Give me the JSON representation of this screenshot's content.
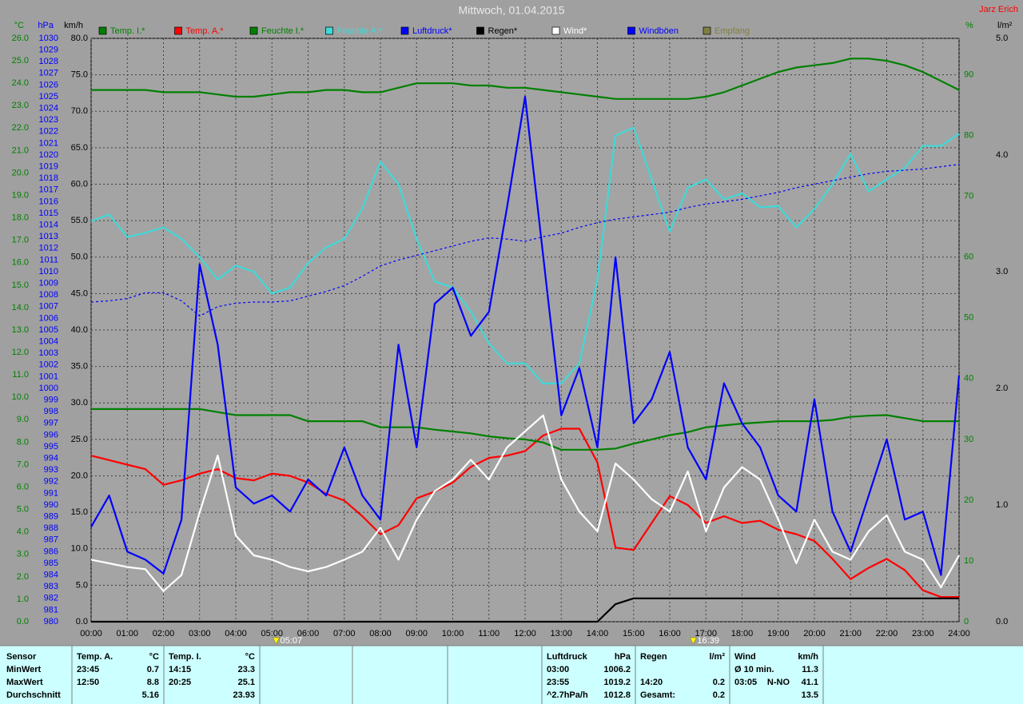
{
  "chart_data": {
    "type": "line",
    "title": "Mittwoch, 01.04.2015",
    "author": "Jarz Erich",
    "xlim": [
      0,
      24
    ],
    "xticks": [
      {
        "value": 0,
        "label": "00:00"
      },
      {
        "value": 1,
        "label": "01:00"
      },
      {
        "value": 2,
        "label": "02:00"
      },
      {
        "value": 3,
        "label": "03:00"
      },
      {
        "value": 4,
        "label": "04:00"
      },
      {
        "value": 5,
        "label": "05:00"
      },
      {
        "value": 6,
        "label": "06:00"
      },
      {
        "value": 7,
        "label": "07:00"
      },
      {
        "value": 8,
        "label": "08:00"
      },
      {
        "value": 9,
        "label": "09:00"
      },
      {
        "value": 10,
        "label": "10:00"
      },
      {
        "value": 11,
        "label": "11:00"
      },
      {
        "value": 12,
        "label": "12:00"
      },
      {
        "value": 13,
        "label": "13:00"
      },
      {
        "value": 14,
        "label": "14:00"
      },
      {
        "value": 15,
        "label": "15:00"
      },
      {
        "value": 16,
        "label": "16:00"
      },
      {
        "value": 17,
        "label": "17:00"
      },
      {
        "value": 18,
        "label": "18:00"
      },
      {
        "value": 19,
        "label": "19:00"
      },
      {
        "value": 20,
        "label": "20:00"
      },
      {
        "value": 21,
        "label": "21:00"
      },
      {
        "value": 22,
        "label": "22:00"
      },
      {
        "value": 23,
        "label": "23:00"
      },
      {
        "value": 24,
        "label": "24:00"
      }
    ],
    "grid": true,
    "axes": [
      {
        "id": "temp",
        "label": "°C",
        "side": "left",
        "color": "#008000",
        "lim": [
          0,
          26
        ],
        "ticks": [
          {
            "value": 0,
            "label": "0.0"
          },
          {
            "value": 1,
            "label": "1.0"
          },
          {
            "value": 2,
            "label": "2.0"
          },
          {
            "value": 3,
            "label": "3.0"
          },
          {
            "value": 4,
            "label": "4.0"
          },
          {
            "value": 5,
            "label": "5.0"
          },
          {
            "value": 6,
            "label": "6.0"
          },
          {
            "value": 7,
            "label": "7.0"
          },
          {
            "value": 8,
            "label": "8.0"
          },
          {
            "value": 9,
            "label": "9.0"
          },
          {
            "value": 10,
            "label": "10.0"
          },
          {
            "value": 11,
            "label": "11.0"
          },
          {
            "value": 12,
            "label": "12.0"
          },
          {
            "value": 13,
            "label": "13.0"
          },
          {
            "value": 14,
            "label": "14.0"
          },
          {
            "value": 15,
            "label": "15.0"
          },
          {
            "value": 16,
            "label": "16.0"
          },
          {
            "value": 17,
            "label": "17.0"
          },
          {
            "value": 18,
            "label": "18.0"
          },
          {
            "value": 19,
            "label": "19.0"
          },
          {
            "value": 20,
            "label": "20.0"
          },
          {
            "value": 21,
            "label": "21.0"
          },
          {
            "value": 22,
            "label": "22.0"
          },
          {
            "value": 23,
            "label": "23.0"
          },
          {
            "value": 24,
            "label": "24.0"
          },
          {
            "value": 25,
            "label": "25.0"
          },
          {
            "value": 26,
            "label": "26.0"
          }
        ]
      },
      {
        "id": "hpa",
        "label": "hPa",
        "side": "left",
        "color": "#0000ff",
        "lim": [
          980,
          1030
        ],
        "ticks": [
          980,
          981,
          982,
          983,
          984,
          985,
          986,
          987,
          988,
          989,
          990,
          991,
          992,
          993,
          994,
          995,
          996,
          997,
          998,
          999,
          1000,
          1001,
          1002,
          1003,
          1004,
          1005,
          1006,
          1007,
          1008,
          1009,
          1010,
          1011,
          1012,
          1013,
          1014,
          1015,
          1016,
          1017,
          1018,
          1019,
          1020,
          1021,
          1022,
          1023,
          1024,
          1025,
          1026,
          1027,
          1028,
          1029,
          1030
        ]
      },
      {
        "id": "kmh",
        "label": "km/h",
        "side": "left",
        "color": "#000000",
        "lim": [
          0,
          80
        ],
        "grid": true,
        "ticks": [
          {
            "value": 0,
            "label": "0.0"
          },
          {
            "value": 5,
            "label": "5.0"
          },
          {
            "value": 10,
            "label": "10.0"
          },
          {
            "value": 15,
            "label": "15.0"
          },
          {
            "value": 20,
            "label": "20.0"
          },
          {
            "value": 25,
            "label": "25.0"
          },
          {
            "value": 30,
            "label": "30.0"
          },
          {
            "value": 35,
            "label": "35.0"
          },
          {
            "value": 40,
            "label": "40.0"
          },
          {
            "value": 45,
            "label": "45.0"
          },
          {
            "value": 50,
            "label": "50.0"
          },
          {
            "value": 55,
            "label": "55.0"
          },
          {
            "value": 60,
            "label": "60.0"
          },
          {
            "value": 65,
            "label": "65.0"
          },
          {
            "value": 70,
            "label": "70.0"
          },
          {
            "value": 75,
            "label": "75.0"
          },
          {
            "value": 80,
            "label": "80.0"
          }
        ]
      },
      {
        "id": "pct",
        "label": "%",
        "side": "right",
        "color": "#008000",
        "lim": [
          0,
          96
        ],
        "ticks": [
          0,
          10,
          20,
          30,
          40,
          50,
          60,
          70,
          80,
          90
        ]
      },
      {
        "id": "rain",
        "label": "l/m²",
        "side": "right",
        "color": "#000000",
        "lim": [
          0,
          5
        ],
        "ticks": [
          {
            "value": 0,
            "label": "0.0"
          },
          {
            "value": 1,
            "label": "1.0"
          },
          {
            "value": 2,
            "label": "2.0"
          },
          {
            "value": 3,
            "label": "3.0"
          },
          {
            "value": 4,
            "label": "4.0"
          },
          {
            "value": 5,
            "label": "5.0"
          }
        ]
      }
    ],
    "x": [
      0,
      0.5,
      1,
      1.5,
      2,
      2.5,
      3,
      3.5,
      4,
      4.5,
      5,
      5.5,
      6,
      6.5,
      7,
      7.5,
      8,
      8.5,
      9,
      9.5,
      10,
      10.5,
      11,
      11.5,
      12,
      12.5,
      13,
      13.5,
      14,
      14.5,
      15,
      15.5,
      16,
      16.5,
      17,
      17.5,
      18,
      18.5,
      19,
      19.5,
      20,
      20.5,
      21,
      21.5,
      22,
      22.5,
      23,
      23.5,
      24
    ],
    "series": [
      {
        "name": "Temp. I.*",
        "color": "#008000",
        "axis": "temp",
        "values": [
          23.7,
          23.7,
          23.7,
          23.7,
          23.6,
          23.6,
          23.6,
          23.5,
          23.4,
          23.4,
          23.5,
          23.6,
          23.6,
          23.7,
          23.7,
          23.6,
          23.6,
          23.8,
          24.0,
          24.0,
          24.0,
          23.9,
          23.9,
          23.8,
          23.8,
          23.7,
          23.6,
          23.5,
          23.4,
          23.3,
          23.3,
          23.3,
          23.3,
          23.3,
          23.4,
          23.6,
          23.9,
          24.2,
          24.5,
          24.7,
          24.8,
          24.9,
          25.1,
          25.1,
          25.0,
          24.8,
          24.5,
          24.1,
          23.7
        ]
      },
      {
        "name": "Temp. A.*",
        "color": "#ff0000",
        "axis": "temp",
        "values": [
          7.4,
          7.2,
          7.0,
          6.8,
          6.1,
          6.3,
          6.6,
          6.8,
          6.4,
          6.3,
          6.6,
          6.5,
          6.2,
          5.7,
          5.4,
          4.7,
          3.9,
          4.3,
          5.5,
          5.8,
          6.2,
          6.9,
          7.3,
          7.4,
          7.6,
          8.3,
          8.6,
          8.6,
          7.1,
          3.3,
          3.2,
          4.4,
          5.6,
          5.2,
          4.4,
          4.7,
          4.4,
          4.5,
          4.1,
          3.9,
          3.6,
          2.8,
          1.9,
          2.4,
          2.8,
          2.3,
          1.4,
          1.1,
          1.1
        ]
      },
      {
        "name": "Feuchte I.*",
        "color": "#008000",
        "axis": "pct",
        "values": [
          35,
          35,
          35,
          35,
          35,
          35,
          35,
          34.5,
          34,
          34,
          34,
          34,
          33,
          33,
          33,
          33,
          32,
          32,
          32,
          31.6,
          31.3,
          31,
          30.5,
          30.2,
          30,
          29.5,
          28.3,
          28.3,
          28.3,
          28.5,
          29.3,
          30,
          30.7,
          31.2,
          32,
          32.3,
          32.6,
          32.8,
          33,
          33,
          33,
          33.2,
          33.7,
          33.9,
          34,
          33.5,
          33,
          33,
          33
        ]
      },
      {
        "name": "Feuchte A.*",
        "color": "#40d8d8",
        "axis": "pct",
        "values": [
          65.9,
          67,
          63.3,
          64,
          64.9,
          63,
          60,
          56.3,
          58.6,
          57.6,
          54,
          55,
          59,
          61.6,
          63,
          68,
          75.7,
          72,
          63,
          56,
          55,
          51,
          45.8,
          42.5,
          42.5,
          39.2,
          39.2,
          42.5,
          56.3,
          80,
          81.3,
          72.8,
          64.2,
          71.4,
          72.8,
          69.5,
          70.5,
          68.2,
          68.4,
          64.9,
          67.9,
          72,
          77,
          70.8,
          72.8,
          74.7,
          78.3,
          78.3,
          80.3
        ]
      },
      {
        "name": "Luftdruck*",
        "color": "#0000ff",
        "axis": "hpa",
        "dash": true,
        "values": [
          1007.4,
          1007.5,
          1007.7,
          1008.2,
          1008.2,
          1007.5,
          1006.2,
          1007.0,
          1007.3,
          1007.4,
          1007.4,
          1007.5,
          1007.9,
          1008.3,
          1008.8,
          1009.6,
          1010.5,
          1011.0,
          1011.4,
          1011.8,
          1012.2,
          1012.6,
          1012.9,
          1012.8,
          1012.6,
          1013.0,
          1013.3,
          1013.8,
          1014.2,
          1014.5,
          1014.7,
          1014.9,
          1015.1,
          1015.5,
          1015.8,
          1016.0,
          1016.2,
          1016.5,
          1016.8,
          1017.2,
          1017.5,
          1017.8,
          1018.1,
          1018.4,
          1018.6,
          1018.7,
          1018.8,
          1019.0,
          1019.2
        ]
      },
      {
        "name": "Regen*",
        "color": "#000000",
        "axis": "rain",
        "values": [
          0,
          0,
          0,
          0,
          0,
          0,
          0,
          0,
          0,
          0,
          0,
          0,
          0,
          0,
          0,
          0,
          0,
          0,
          0,
          0,
          0,
          0,
          0,
          0,
          0,
          0,
          0,
          0,
          0,
          0.15,
          0.2,
          0.2,
          0.2,
          0.2,
          0.2,
          0.2,
          0.2,
          0.2,
          0.2,
          0.2,
          0.2,
          0.2,
          0.2,
          0.2,
          0.2,
          0.2,
          0.2,
          0.2,
          0.2
        ]
      },
      {
        "name": "Wind*",
        "color": "#ffffff",
        "axis": "kmh",
        "values": [
          8.5,
          8,
          7.5,
          7.2,
          4.2,
          6.4,
          15,
          22.8,
          11.8,
          9.1,
          8.5,
          7.5,
          6.9,
          7.5,
          8.5,
          9.6,
          12.9,
          8.5,
          14,
          17.9,
          19.5,
          22.2,
          19.5,
          23.9,
          26.1,
          28.3,
          19.5,
          15.1,
          12.4,
          21.7,
          19.5,
          16.8,
          15.1,
          20.6,
          12.4,
          18.4,
          21.2,
          19.5,
          14,
          8,
          14,
          9.6,
          8.5,
          12.4,
          14.6,
          9.6,
          8.5,
          4.7,
          9.1
        ]
      },
      {
        "name": "Windböen",
        "color": "#0000ff",
        "axis": "kmh",
        "values": [
          13,
          17.3,
          9.6,
          8.5,
          6.6,
          14,
          49,
          38,
          18.4,
          16.2,
          17.3,
          15.1,
          19.5,
          17.3,
          23.9,
          17.3,
          14,
          38,
          23.9,
          43.6,
          45.8,
          39.2,
          42.5,
          56.8,
          72,
          50.2,
          28.3,
          34.8,
          23.9,
          50,
          27.2,
          30.5,
          37,
          23.9,
          19.5,
          32.7,
          27.2,
          23.9,
          17.3,
          15.1,
          30.5,
          15.1,
          9.6,
          17.3,
          25,
          14,
          15.1,
          6.4,
          33.8
        ]
      },
      {
        "name": "Empfang",
        "color": "#808040",
        "axis": "pct",
        "values": [
          null,
          null,
          null,
          null,
          null,
          null,
          null,
          null,
          null,
          null,
          null,
          null,
          null,
          null,
          null,
          null,
          null,
          null,
          null,
          null,
          null,
          null,
          null,
          null,
          null,
          null,
          null,
          null,
          null,
          null,
          null,
          null,
          null,
          null,
          null,
          null,
          null,
          null,
          null,
          null,
          null,
          null,
          null,
          null,
          null,
          null,
          null,
          null,
          null
        ]
      }
    ],
    "annotations": [
      {
        "x": 5.117,
        "label": "05:07"
      },
      {
        "x": 16.65,
        "label": "16:39"
      }
    ]
  },
  "table": {
    "row_labels": [
      "Sensor",
      "MinWert",
      "MaxWert",
      "Durchschnitt"
    ],
    "groups": [
      {
        "title": "Temp. A.",
        "unit": "°C",
        "rows": [
          [
            "23:45",
            "0.7"
          ],
          [
            "12:50",
            "8.8"
          ],
          [
            "5.16"
          ]
        ]
      },
      {
        "title": "Temp. I.",
        "unit": "°C",
        "rows": [
          [
            "14:15",
            "23.3"
          ],
          [
            "20:25",
            "25.1"
          ],
          [
            "23.93"
          ]
        ]
      },
      {
        "title": "Luftdruck",
        "unit": "hPa",
        "rows": [
          [
            "03:00",
            "1006.2"
          ],
          [
            "23:55",
            "1019.2"
          ],
          [
            "^2.7hPa/h",
            "1012.8"
          ]
        ]
      },
      {
        "title": "Regen",
        "unit": "l/m²",
        "rows": [
          [],
          [
            "14:20",
            "0.2"
          ],
          [
            "Gesamt:",
            "0.2"
          ]
        ]
      },
      {
        "title": "Wind",
        "unit": "km/h",
        "rows": [
          [
            "Ø 10 min.",
            "11.3"
          ],
          [
            "03:05",
            "N-NO",
            "41.1"
          ],
          [
            "13.5"
          ]
        ]
      }
    ]
  }
}
